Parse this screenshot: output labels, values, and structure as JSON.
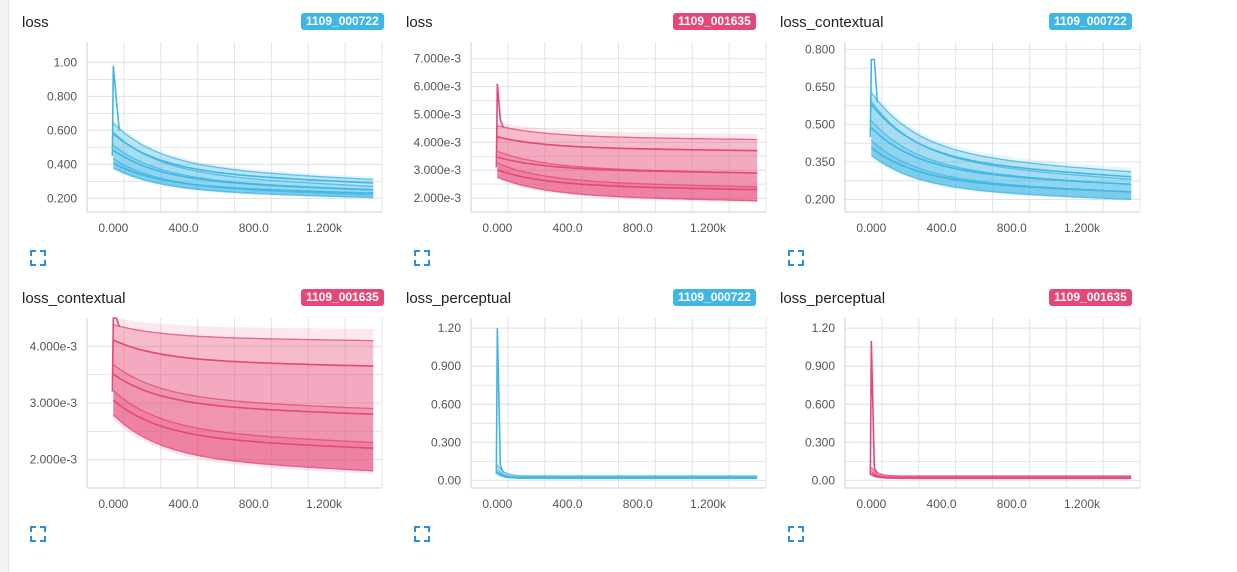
{
  "colors": {
    "blue": "#3fb6e3",
    "pink": "#e54877",
    "grid": "#e4e4e4",
    "axis": "#cfcfcf",
    "tick_text": "#555555"
  },
  "expand_icon": "expand-icon",
  "x_ticks": [
    "0.000",
    "400.0",
    "800.0",
    "1.200k"
  ],
  "charts": [
    {
      "title": "loss",
      "run": "1109_000722",
      "color": "blue",
      "xmax": 1480,
      "y_ticks": [
        "0.200",
        "0.400",
        "0.600",
        "0.800",
        "1.00"
      ],
      "y_values": [
        0.2,
        0.4,
        0.6,
        0.8,
        1.0
      ],
      "ylim": [
        0.12,
        1.12
      ],
      "bands": [
        {
          "start": 0.78,
          "end": 0.31
        },
        {
          "start": 0.72,
          "end": 0.27
        },
        {
          "start": 0.62,
          "end": 0.25
        },
        {
          "start": 0.52,
          "end": 0.22
        },
        {
          "start": 0.45,
          "end": 0.205
        }
      ],
      "lines": [
        {
          "start": 0.7,
          "end": 0.29
        },
        {
          "start": 0.58,
          "end": 0.25
        },
        {
          "start": 0.48,
          "end": 0.23
        }
      ],
      "spike": 0.98,
      "grid_count": 8
    },
    {
      "title": "loss",
      "run": "1109_001635",
      "color": "pink",
      "xmax": 1480,
      "y_ticks": [
        "2.000e-3",
        "3.000e-3",
        "4.000e-3",
        "5.000e-3",
        "6.000e-3",
        "7.000e-3"
      ],
      "y_values": [
        0.002,
        0.003,
        0.004,
        0.005,
        0.006,
        0.007
      ],
      "ylim": [
        0.0015,
        0.0076
      ],
      "bands": [
        {
          "start": 0.0048,
          "end": 0.0041
        },
        {
          "start": 0.0044,
          "end": 0.0037
        },
        {
          "start": 0.004,
          "end": 0.0029
        },
        {
          "start": 0.0036,
          "end": 0.0024
        },
        {
          "start": 0.0031,
          "end": 0.0019
        }
      ],
      "lines": [
        {
          "start": 0.0044,
          "end": 0.0037
        },
        {
          "start": 0.0037,
          "end": 0.0029
        },
        {
          "start": 0.0033,
          "end": 0.0023
        }
      ],
      "spike": 0.0061,
      "grid_count": 8
    },
    {
      "title": "loss_contextual",
      "run": "1109_000722",
      "color": "blue",
      "xmax": 1480,
      "y_ticks": [
        "0.200",
        "0.350",
        "0.500",
        "0.650",
        "0.800"
      ],
      "y_values": [
        0.2,
        0.35,
        0.5,
        0.65,
        0.8
      ],
      "ylim": [
        0.15,
        0.83
      ],
      "bands": [
        {
          "start": 0.76,
          "end": 0.31
        },
        {
          "start": 0.72,
          "end": 0.28
        },
        {
          "start": 0.62,
          "end": 0.26
        },
        {
          "start": 0.52,
          "end": 0.23
        },
        {
          "start": 0.45,
          "end": 0.2
        }
      ],
      "lines": [
        {
          "start": 0.7,
          "end": 0.29
        },
        {
          "start": 0.58,
          "end": 0.26
        },
        {
          "start": 0.48,
          "end": 0.23
        }
      ],
      "spike": 0.76,
      "grid_count": 8
    },
    {
      "title": "loss_contextual",
      "run": "1109_001635",
      "color": "pink",
      "xmax": 1480,
      "y_ticks": [
        "2.000e-3",
        "3.000e-3",
        "4.000e-3"
      ],
      "y_values": [
        0.002,
        0.003,
        0.004
      ],
      "ylim": [
        0.0015,
        0.0045
      ],
      "bands": [
        {
          "start": 0.0045,
          "end": 0.0041
        },
        {
          "start": 0.0043,
          "end": 0.00365
        },
        {
          "start": 0.004,
          "end": 0.0029
        },
        {
          "start": 0.0036,
          "end": 0.0023
        },
        {
          "start": 0.0032,
          "end": 0.0018
        }
      ],
      "lines": [
        {
          "start": 0.0043,
          "end": 0.00365
        },
        {
          "start": 0.0038,
          "end": 0.0028
        },
        {
          "start": 0.0034,
          "end": 0.0022
        }
      ],
      "spike": 0.0045,
      "grid_count": 8
    },
    {
      "title": "loss_perceptual",
      "run": "1109_000722",
      "color": "blue",
      "xmax": 1480,
      "y_ticks": [
        "0.00",
        "0.300",
        "0.600",
        "0.900",
        "1.20"
      ],
      "y_values": [
        0,
        0.3,
        0.6,
        0.9,
        1.2
      ],
      "ylim": [
        -0.06,
        1.28
      ],
      "bands": [
        {
          "start": 0.12,
          "end": 0.035
        },
        {
          "start": 0.08,
          "end": 0.025
        },
        {
          "start": 0.05,
          "end": 0.015
        }
      ],
      "lines": [
        {
          "start": 0.06,
          "end": 0.02
        }
      ],
      "spike": 1.2,
      "grid_count": 8,
      "sharp": true
    },
    {
      "title": "loss_perceptual",
      "run": "1109_001635",
      "color": "pink",
      "xmax": 1480,
      "y_ticks": [
        "0.00",
        "0.300",
        "0.600",
        "0.900",
        "1.20"
      ],
      "y_values": [
        0,
        0.3,
        0.6,
        0.9,
        1.2
      ],
      "ylim": [
        -0.06,
        1.28
      ],
      "bands": [
        {
          "start": 0.1,
          "end": 0.035
        },
        {
          "start": 0.07,
          "end": 0.025
        },
        {
          "start": 0.04,
          "end": 0.015
        }
      ],
      "lines": [
        {
          "start": 0.05,
          "end": 0.02
        }
      ],
      "spike": 1.1,
      "grid_count": 8,
      "sharp": true
    }
  ]
}
